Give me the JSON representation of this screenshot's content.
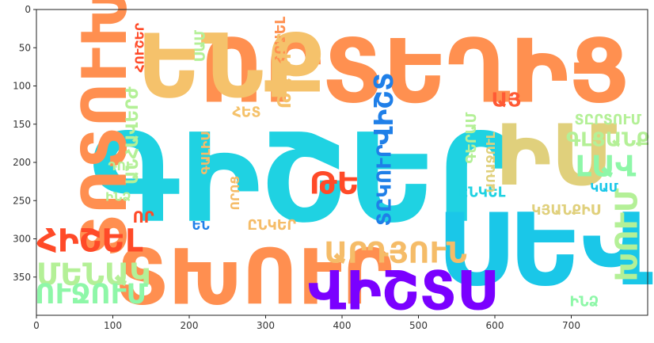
{
  "chart_data": {
    "type": "wordcloud",
    "xlim": [
      0,
      800
    ],
    "ylim": [
      400,
      0
    ],
    "x_ticks": [
      0,
      100,
      200,
      300,
      400,
      500,
      600,
      700
    ],
    "y_ticks": [
      0,
      50,
      100,
      150,
      200,
      250,
      300,
      350
    ],
    "words": [
      {
        "text": "ԳԻՇԵՐ",
        "x": 350,
        "y": 222,
        "size": 160,
        "orientation": "horizontal",
        "color": "#1fd2e2"
      },
      {
        "text": "ՈՐՏԵՂԻՑ",
        "x": 495,
        "y": 82,
        "size": 115,
        "orientation": "horizontal",
        "color": "#ff9050"
      },
      {
        "text": "ՍԵՎ",
        "x": 665,
        "y": 315,
        "size": 130,
        "orientation": "horizontal",
        "color": "#1ac7e8"
      },
      {
        "text": "ԵՆՔ",
        "x": 255,
        "y": 75,
        "size": 115,
        "orientation": "horizontal",
        "color": "#f5c26b"
      },
      {
        "text": "ՏԽՈՒՐ",
        "x": 285,
        "y": 350,
        "size": 100,
        "orientation": "horizontal",
        "color": "#ff8f50"
      },
      {
        "text": "ՏՈՏՈՒԽ",
        "x": 90,
        "y": 148,
        "size": 80,
        "orientation": "vertical",
        "color": "#ff8f50"
      },
      {
        "text": "ԻՄ",
        "x": 680,
        "y": 192,
        "size": 110,
        "orientation": "horizontal",
        "color": "#e0d07c"
      },
      {
        "text": "ՎԻՇՏՍ",
        "x": 478,
        "y": 368,
        "size": 70,
        "orientation": "horizontal",
        "color": "#7a00ff"
      },
      {
        "text": "ՄԵՆԱԿ",
        "x": 75,
        "y": 347,
        "size": 40,
        "orientation": "horizontal",
        "color": "#b4f097"
      },
      {
        "text": "ՈՒՋՈՒՄ",
        "x": 72,
        "y": 373,
        "size": 36,
        "orientation": "horizontal",
        "color": "#8ef7a8"
      },
      {
        "text": "ՀԻՇԵԼ",
        "x": 70,
        "y": 302,
        "size": 42,
        "orientation": "horizontal",
        "color": "#ff4a28"
      },
      {
        "text": "ԱՐԴՅՈՒՆ",
        "x": 470,
        "y": 318,
        "size": 38,
        "orientation": "horizontal",
        "color": "#f5bc68"
      },
      {
        "text": "ԹԵ",
        "x": 390,
        "y": 228,
        "size": 40,
        "orientation": "horizontal",
        "color": "#ff4a28"
      },
      {
        "text": "ԼԱՎ",
        "x": 745,
        "y": 205,
        "size": 38,
        "orientation": "horizontal",
        "color": "#8ef7a8"
      },
      {
        "text": "ԽՈՒՄ",
        "x": 773,
        "y": 295,
        "size": 40,
        "orientation": "vertical",
        "color": "#b4f097"
      },
      {
        "text": "ԳԼՑԱՆՔ",
        "x": 748,
        "y": 170,
        "size": 26,
        "orientation": "horizontal",
        "color": "#b4f097"
      },
      {
        "text": "ՏԸՐՏՈՒՄ",
        "x": 748,
        "y": 145,
        "size": 18,
        "orientation": "horizontal",
        "color": "#b4f097"
      },
      {
        "text": "ԿԱՄ",
        "x": 743,
        "y": 233,
        "size": 16,
        "orientation": "horizontal",
        "color": "#1ac7e8"
      },
      {
        "text": "ԿՅԱՆՔԻՍ",
        "x": 693,
        "y": 263,
        "size": 18,
        "orientation": "horizontal",
        "color": "#e0d07c"
      },
      {
        "text": "ԻՆՁ",
        "x": 717,
        "y": 383,
        "size": 18,
        "orientation": "horizontal",
        "color": "#8ef7a8"
      },
      {
        "text": "ԸՆԿԵԼ",
        "x": 583,
        "y": 240,
        "size": 18,
        "orientation": "horizontal",
        "color": "#1fd2e2"
      },
      {
        "text": "ԱՅ",
        "x": 615,
        "y": 118,
        "size": 26,
        "orientation": "horizontal",
        "color": "#ff5a35"
      },
      {
        "text": "ՎԻՇՏ",
        "x": 455,
        "y": 130,
        "size": 34,
        "orientation": "vertical",
        "color": "#1f7fe8"
      },
      {
        "text": "ՏԸԿՈՒՐ",
        "x": 455,
        "y": 230,
        "size": 26,
        "orientation": "vertical",
        "color": "#1f7fe8"
      },
      {
        "text": "ԳԵՐԱՄ",
        "x": 570,
        "y": 168,
        "size": 18,
        "orientation": "vertical",
        "color": "#b4f097"
      },
      {
        "text": "ԱՌԱՋՈՒԼ",
        "x": 595,
        "y": 200,
        "size": 16,
        "orientation": "vertical",
        "color": "#e0d07c"
      },
      {
        "text": "ՀՐԱԵԼ",
        "x": 320,
        "y": 40,
        "size": 18,
        "orientation": "vertical",
        "color": "#ff9050"
      },
      {
        "text": "ԹԱԽԻԾ",
        "x": 325,
        "y": 80,
        "size": 24,
        "orientation": "vertical",
        "color": "#f5c26b"
      },
      {
        "text": "ՀՈՒՇԵՐ",
        "x": 135,
        "y": 50,
        "size": 16,
        "orientation": "vertical",
        "color": "#ff4a28"
      },
      {
        "text": "ՍԱՄ",
        "x": 215,
        "y": 48,
        "size": 18,
        "orientation": "vertical",
        "color": "#b4f097"
      },
      {
        "text": "ՀԵՏ",
        "x": 275,
        "y": 135,
        "size": 18,
        "orientation": "horizontal",
        "color": "#f5c26b"
      },
      {
        "text": "ԳԱԼԻՍ",
        "x": 222,
        "y": 188,
        "size": 16,
        "orientation": "vertical",
        "color": "#f5bc68"
      },
      {
        "text": "ԱՆՀԱՎԵՐԺ",
        "x": 125,
        "y": 165,
        "size": 22,
        "orientation": "vertical",
        "color": "#b4f097"
      },
      {
        "text": "ԴՈՒ",
        "x": 110,
        "y": 205,
        "size": 16,
        "orientation": "horizontal",
        "color": "#b4f097"
      },
      {
        "text": "ԻՆՁ",
        "x": 107,
        "y": 245,
        "size": 16,
        "orientation": "horizontal",
        "color": "#b4f097"
      },
      {
        "text": "ՈՐՈՑ",
        "x": 260,
        "y": 240,
        "size": 16,
        "orientation": "vertical",
        "color": "#f5bc68"
      },
      {
        "text": "ԸՆԿԵՐ",
        "x": 308,
        "y": 283,
        "size": 18,
        "orientation": "horizontal",
        "color": "#f5bc68"
      },
      {
        "text": "ԵՆ",
        "x": 215,
        "y": 283,
        "size": 16,
        "orientation": "horizontal",
        "color": "#1f7fe8"
      },
      {
        "text": "ՈՐ",
        "x": 140,
        "y": 272,
        "size": 20,
        "orientation": "horizontal",
        "color": "#ff4a28"
      }
    ]
  }
}
